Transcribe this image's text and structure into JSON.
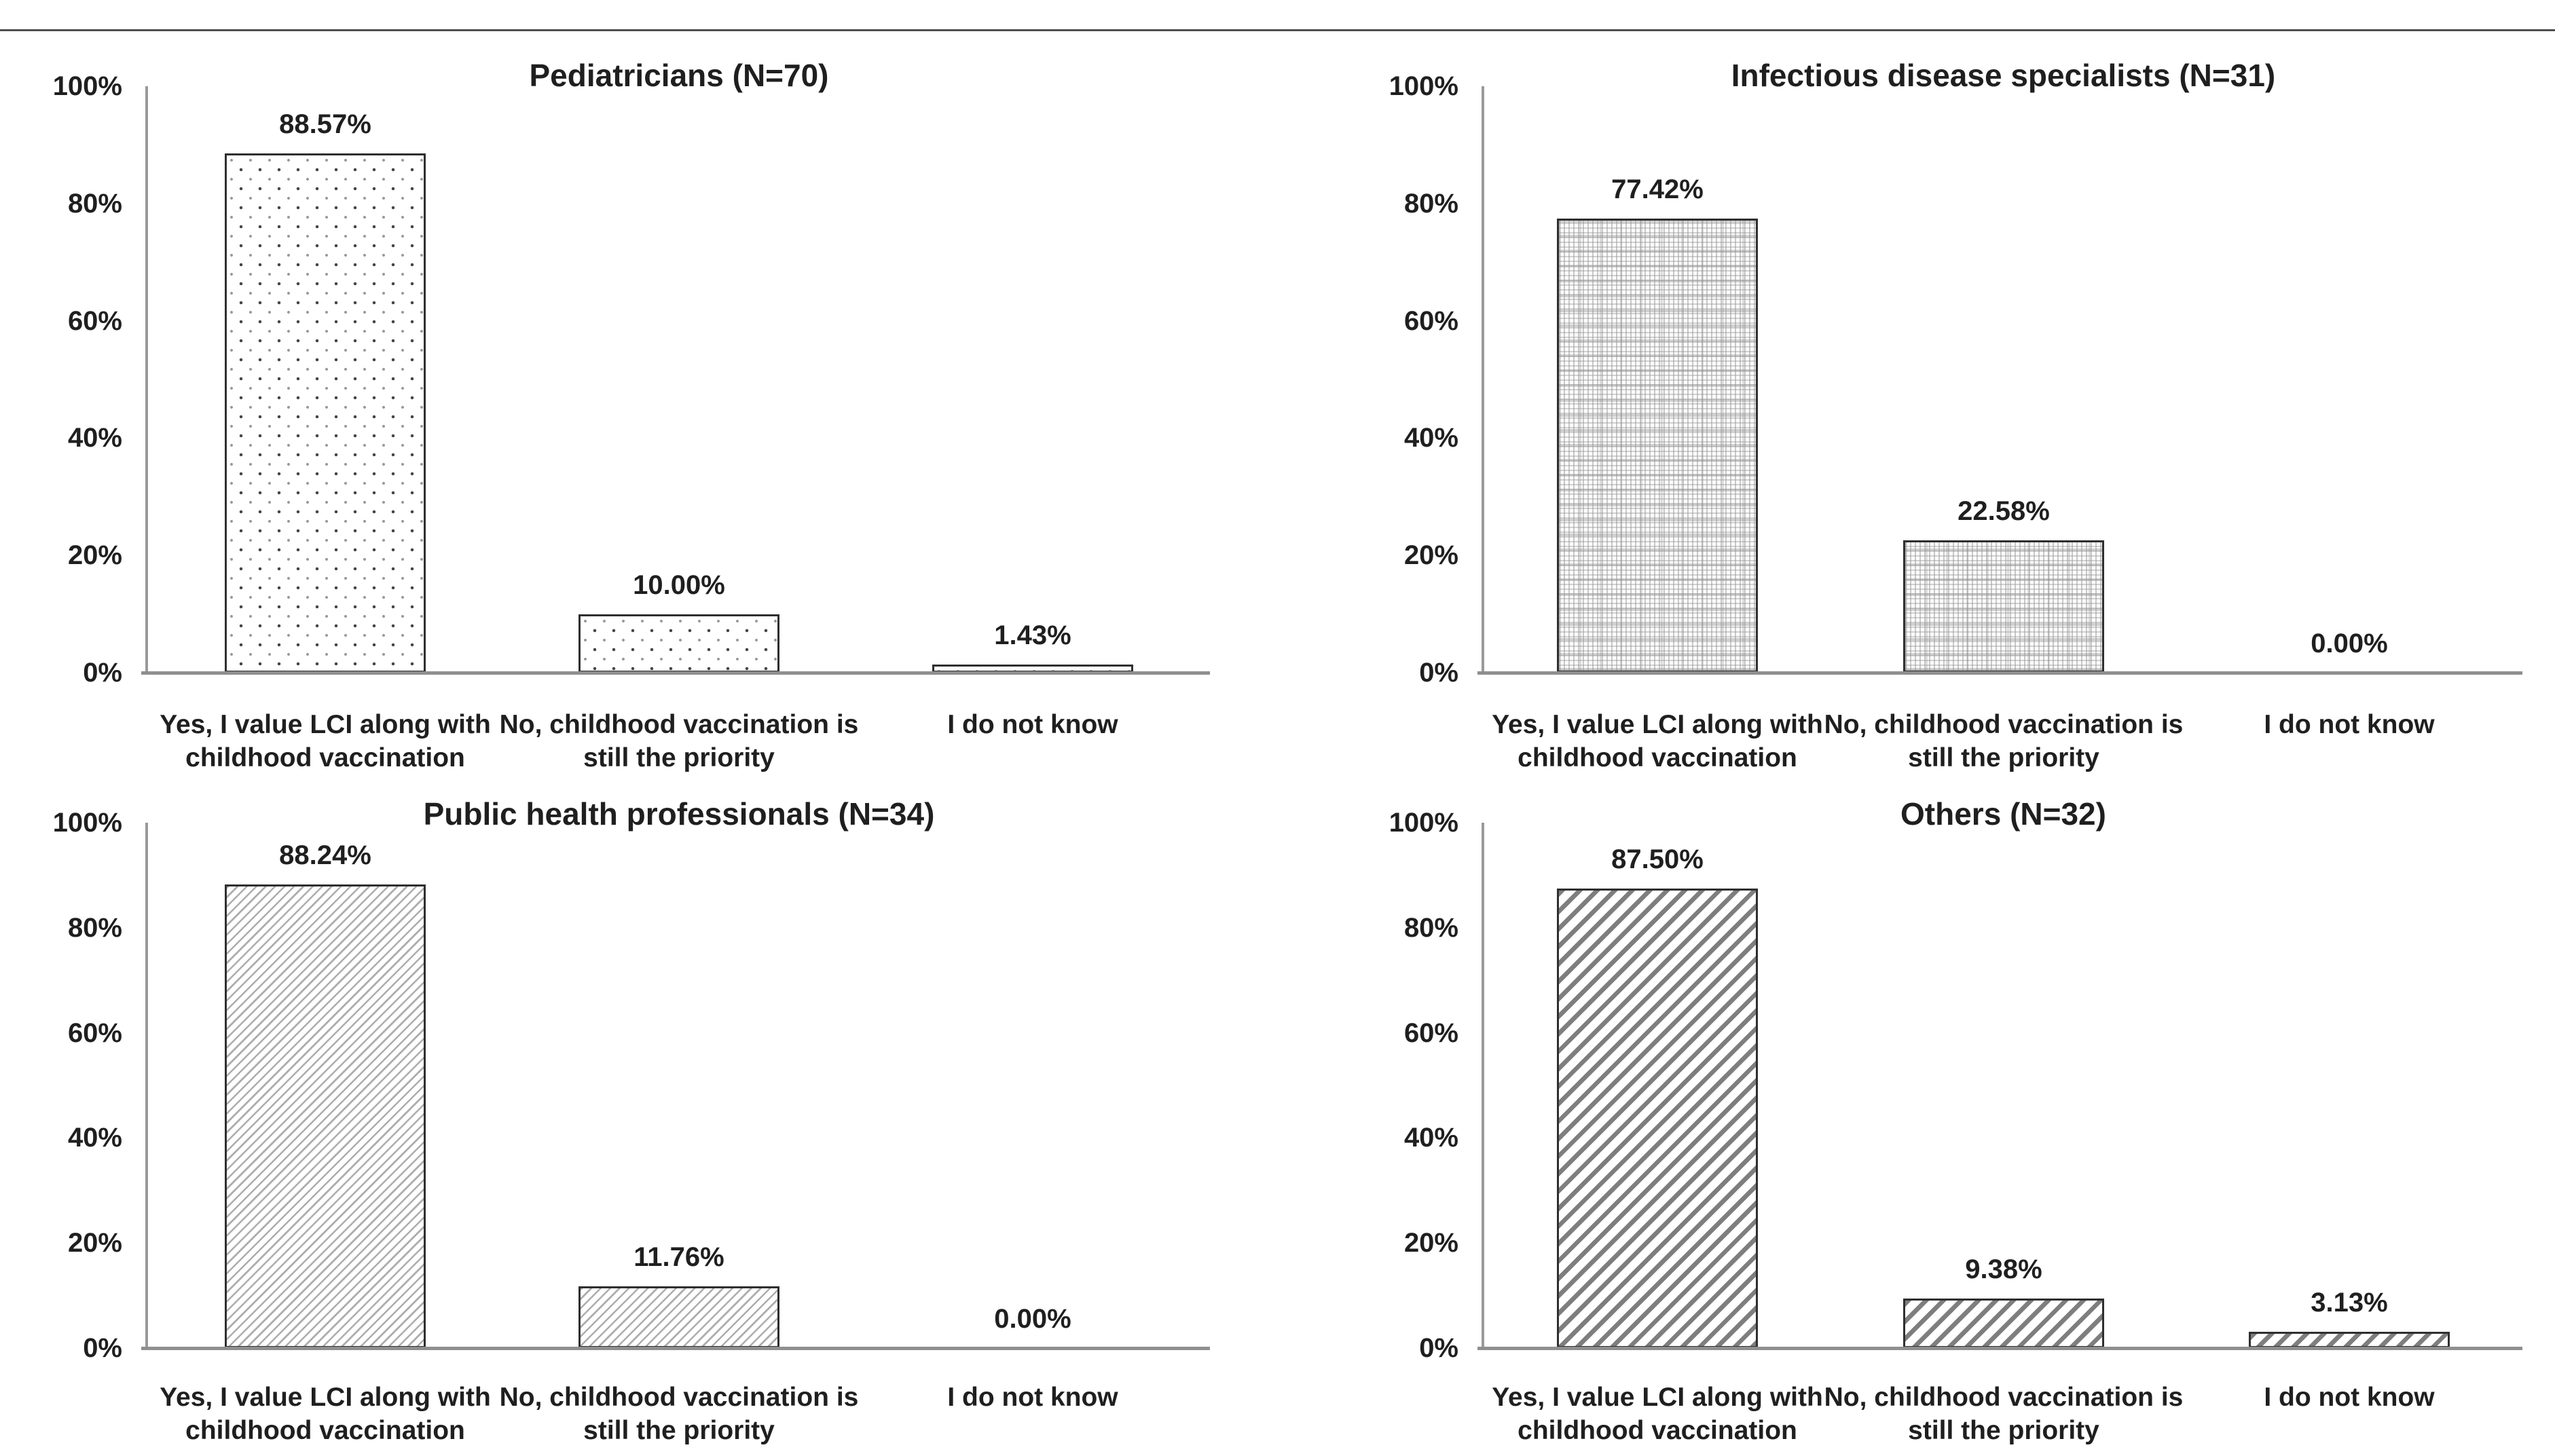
{
  "figure": {
    "background": "#ffffff",
    "top_rule_color": "#4f4f4f",
    "text_color": "#1f1f1f",
    "axis_color": "#9a9a9a",
    "baseline_color": "#8f8f8f",
    "bar_border_color": "#2f2f2f"
  },
  "chart_data": [
    {
      "type": "bar",
      "title": "Pediatricians (N=70)",
      "group": "Pediatricians",
      "n": 70,
      "categories": [
        "Yes, I value LCI along with childhood vaccination",
        "No, childhood vaccination is still the priority",
        "I do not know"
      ],
      "values": [
        88.57,
        10.0,
        1.43
      ],
      "value_labels": [
        "88.57%",
        "10.00%",
        "1.43%"
      ],
      "bar_fill_pattern": "dots",
      "y_ticks": [
        "0%",
        "20%",
        "40%",
        "60%",
        "80%",
        "100%"
      ],
      "ylim": [
        0,
        100
      ],
      "xlabel": "",
      "ylabel": "",
      "grid": false,
      "legend": "none"
    },
    {
      "type": "bar",
      "title": "Infectious disease specialists (N=31)",
      "group": "Infectious disease specialists",
      "n": 31,
      "categories": [
        "Yes, I value LCI along with childhood vaccination",
        "No, childhood vaccination is still the priority",
        "I do not know"
      ],
      "values": [
        77.42,
        22.58,
        0.0
      ],
      "value_labels": [
        "77.42%",
        "22.58%",
        "0.00%"
      ],
      "bar_fill_pattern": "fine-grid",
      "y_ticks": [
        "0%",
        "20%",
        "40%",
        "60%",
        "80%",
        "100%"
      ],
      "ylim": [
        0,
        100
      ],
      "xlabel": "",
      "ylabel": "",
      "grid": false,
      "legend": "none"
    },
    {
      "type": "bar",
      "title": "Public health professionals (N=34)",
      "group": "Public health professionals",
      "n": 34,
      "categories": [
        "Yes, I value LCI along with childhood vaccination",
        "No, childhood vaccination is still the priority",
        "I do not know"
      ],
      "values": [
        88.24,
        11.76,
        0.0
      ],
      "value_labels": [
        "88.24%",
        "11.76%",
        "0.00%"
      ],
      "bar_fill_pattern": "diagonal-thin",
      "y_ticks": [
        "0%",
        "20%",
        "40%",
        "60%",
        "80%",
        "100%"
      ],
      "ylim": [
        0,
        100
      ],
      "xlabel": "",
      "ylabel": "",
      "grid": false,
      "legend": "none"
    },
    {
      "type": "bar",
      "title": "Others (N=32)",
      "group": "Others",
      "n": 32,
      "categories": [
        "Yes, I value LCI along with childhood vaccination",
        "No, childhood vaccination is still the priority",
        "I do not know"
      ],
      "values": [
        87.5,
        9.38,
        3.13
      ],
      "value_labels": [
        "87.50%",
        "9.38%",
        "3.13%"
      ],
      "bar_fill_pattern": "diagonal-wide",
      "y_ticks": [
        "0%",
        "20%",
        "40%",
        "60%",
        "80%",
        "100%"
      ],
      "ylim": [
        0,
        100
      ],
      "xlabel": "",
      "ylabel": "",
      "grid": false,
      "legend": "none"
    }
  ]
}
